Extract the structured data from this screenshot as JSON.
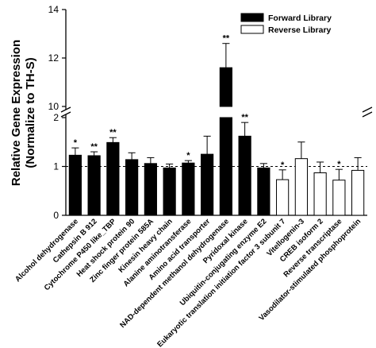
{
  "chart_data": {
    "type": "bar",
    "ylabel_line1": "Relative Gene Expression",
    "ylabel_line2": "(Normalize to TH-S)",
    "y_ticks_lower": [
      0,
      1,
      2
    ],
    "y_ticks_upper": [
      10,
      12,
      14
    ],
    "ylim_lower": [
      0,
      2
    ],
    "ylim_upper": [
      10,
      14
    ],
    "axis_break": true,
    "reference_line": 1,
    "legend": {
      "position": "top-right",
      "entries": [
        "Forward Library",
        "Reverse Library"
      ]
    },
    "colors": {
      "Forward Library": "#000000",
      "Reverse Library": "#ffffff"
    },
    "categories": [
      "Alcohol dehydrogenase",
      "Cathepsin B 912",
      "Cytochrome P450 like_TBP",
      "Heat shock protein 90",
      "Zinc finger protein 585A",
      "Kinesin heavy chain",
      "Alanine aminotransferase",
      "Amino acid transporter",
      "NAD-dependent methanol dehydrogenase",
      "Pyridoxal kinase",
      "Ubiquitin-conjugating enzyme E2",
      "Eukaryotic translation initiation factor 3 subunit 7",
      "Vitellogenin-3",
      "CREB isoform 2",
      "Reverse transcriptase",
      "Vasodilator-stimulated phosphoprotein"
    ],
    "series": [
      {
        "name": "Forward Library",
        "values": [
          1.23,
          1.22,
          1.49,
          1.14,
          1.06,
          0.97,
          1.07,
          1.25,
          11.6,
          1.62,
          0.97,
          null,
          null,
          null,
          null,
          null
        ],
        "errors": [
          0.15,
          0.08,
          0.1,
          0.14,
          0.12,
          0.08,
          0.05,
          0.37,
          1.0,
          0.28,
          0.09,
          null,
          null,
          null,
          null,
          null
        ]
      },
      {
        "name": "Reverse Library",
        "values": [
          null,
          null,
          null,
          null,
          null,
          null,
          null,
          null,
          null,
          null,
          null,
          0.73,
          1.16,
          0.87,
          0.72,
          0.92
        ],
        "errors": [
          null,
          null,
          null,
          null,
          null,
          null,
          null,
          null,
          null,
          null,
          null,
          0.2,
          0.34,
          0.22,
          0.22,
          0.26
        ]
      }
    ],
    "significance": [
      "*",
      "**",
      "**",
      "",
      "",
      "",
      "*",
      "",
      "**",
      "**",
      "",
      "*",
      "",
      "",
      "*",
      ""
    ]
  }
}
